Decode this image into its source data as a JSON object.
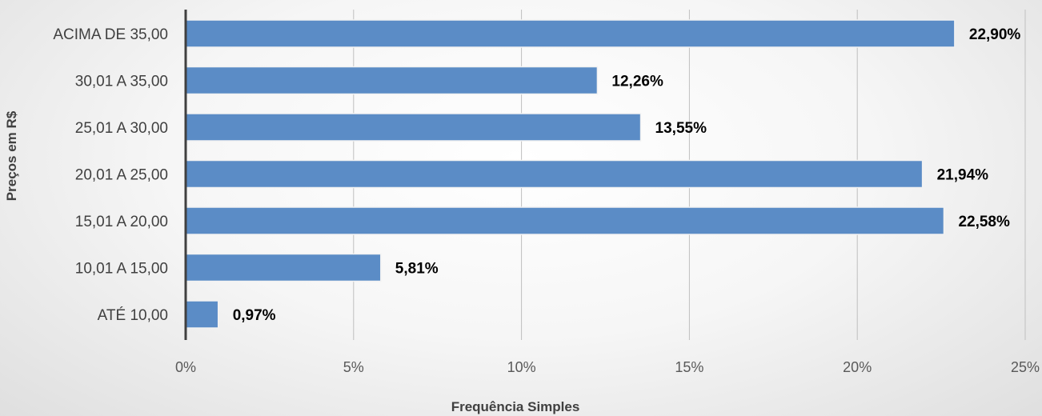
{
  "chart_data": {
    "type": "bar",
    "orientation": "horizontal",
    "categories": [
      "ACIMA DE 35,00",
      "30,01 A 35,00",
      "25,01 A 30,00",
      "20,01 A 25,00",
      "15,01 A 20,00",
      "10,01 A 15,00",
      "ATÉ 10,00"
    ],
    "values": [
      22.9,
      12.26,
      13.55,
      21.94,
      22.58,
      5.81,
      0.97
    ],
    "data_labels": [
      "22,90%",
      "12,26%",
      "13,55%",
      "21,94%",
      "22,58%",
      "5,81%",
      "0,97%"
    ],
    "xlabel": "Frequência Simples",
    "ylabel": "Preços em R$",
    "xlim": [
      0,
      25
    ],
    "x_ticks": [
      0,
      5,
      10,
      15,
      20,
      25
    ],
    "x_tick_labels": [
      "0%",
      "5%",
      "10%",
      "15%",
      "20%",
      "25%"
    ],
    "grid": "vertical",
    "legend": "none",
    "bar_color": "#5b8cc6",
    "bar_border_color": "#f2f2f2"
  }
}
